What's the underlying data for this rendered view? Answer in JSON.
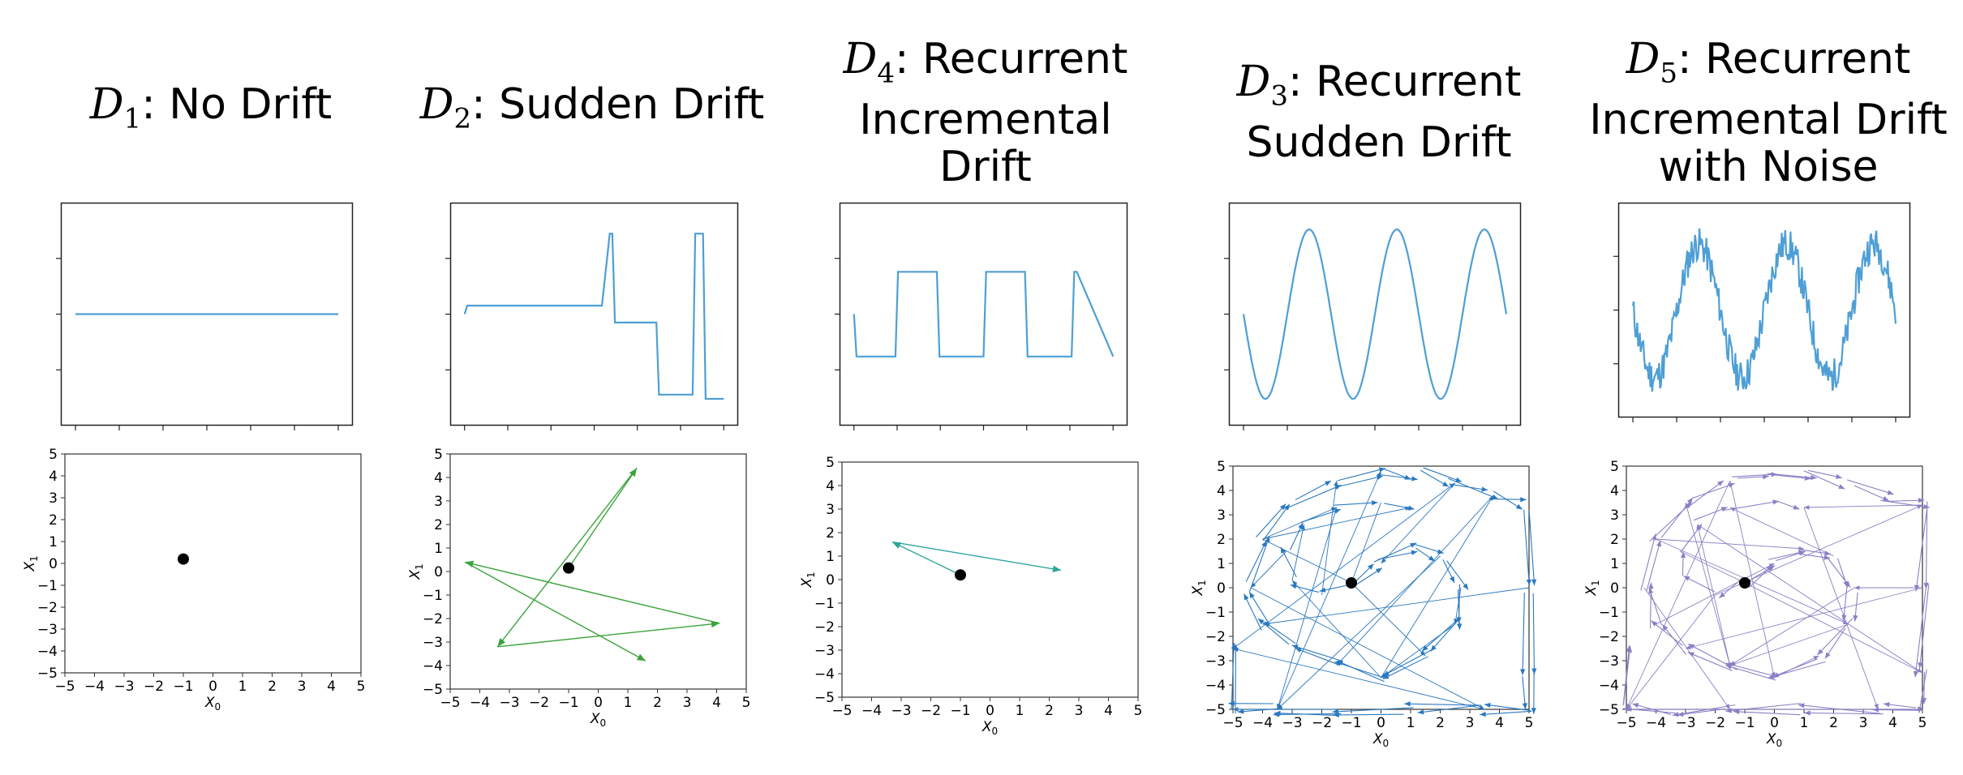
{
  "columns": [
    {
      "sym": "D",
      "sub": "1",
      "title_lines": [
        ": No Drift"
      ]
    },
    {
      "sym": "D",
      "sub": "2",
      "title_lines": [
        ": Sudden Drift"
      ]
    },
    {
      "sym": "D",
      "sub": "4",
      "title_lines": [
        ": Recurrent",
        "Incremental",
        "Drift"
      ]
    },
    {
      "sym": "D",
      "sub": "3",
      "title_lines": [
        ": Recurrent",
        "Sudden Drift"
      ]
    },
    {
      "sym": "D",
      "sub": "5",
      "title_lines": [
        ": Recurrent",
        "Incremental Drift",
        "with Noise"
      ]
    }
  ],
  "chart_data": [
    {
      "type": "line",
      "panel": "D1-series",
      "color": "#4e9fd5",
      "x": [
        0,
        100
      ],
      "y": [
        0,
        0
      ]
    },
    {
      "type": "line",
      "panel": "D2-series",
      "color": "#4e9fd5",
      "x": [
        0,
        1,
        2,
        52,
        53,
        56,
        57,
        58,
        60,
        74,
        75,
        88,
        89,
        92,
        93,
        98,
        99,
        100
      ],
      "y": [
        0.0,
        0.1,
        0.1,
        0.1,
        0.1,
        0.95,
        0.95,
        -0.1,
        -0.1,
        -0.1,
        -0.95,
        -0.95,
        0.95,
        0.95,
        -1.0,
        -1.0,
        -1.0,
        -1.0
      ]
    },
    {
      "type": "line",
      "panel": "D4-series",
      "color": "#4e9fd5",
      "x": [
        0,
        1,
        2,
        16,
        17,
        18,
        32,
        33,
        34,
        50,
        51,
        52,
        66,
        67,
        68,
        84,
        85,
        86,
        100
      ],
      "y": [
        0.0,
        -0.5,
        -0.5,
        -0.5,
        0.5,
        0.5,
        0.5,
        -0.5,
        -0.5,
        -0.5,
        0.5,
        0.5,
        0.5,
        -0.5,
        -0.5,
        -0.5,
        0.5,
        0.5,
        -0.5
      ]
    },
    {
      "type": "line",
      "panel": "D3-series",
      "color": "#4e9fd5",
      "x_range": [
        0,
        100
      ],
      "cycles": 3,
      "amplitude": 1,
      "phase": "starts at 0 going down"
    },
    {
      "type": "line",
      "panel": "D5-series",
      "color": "#4e9fd5",
      "x_range": [
        0,
        100
      ],
      "cycles": 3,
      "amplitude": 1,
      "noise": 0.25,
      "phase": "starts at 0 going down"
    },
    {
      "type": "scatter",
      "panel": "D1-phase",
      "xlabel": "X",
      "xlabel_sub": "0",
      "ylabel": "X",
      "ylabel_sub": "1",
      "xlim": [
        -5,
        5
      ],
      "ylim": [
        -5,
        5
      ],
      "ticks": [
        -5,
        -4,
        -3,
        -2,
        -1,
        0,
        1,
        2,
        3,
        4,
        5
      ],
      "points": [
        [
          -1,
          0.2
        ]
      ],
      "arrows": [],
      "arrow_color": "#3ca33c"
    },
    {
      "type": "scatter",
      "panel": "D2-phase",
      "xlabel": "X",
      "xlabel_sub": "0",
      "ylabel": "X",
      "ylabel_sub": "1",
      "xlim": [
        -5,
        5
      ],
      "ylim": [
        -5,
        5
      ],
      "ticks": [
        -5,
        -4,
        -3,
        -2,
        -1,
        0,
        1,
        2,
        3,
        4,
        5
      ],
      "points": [
        [
          -1,
          0.15
        ]
      ],
      "arrow_color": "#3ca33c",
      "arrows": [
        [
          [
            -1,
            0.15
          ],
          [
            1.3,
            4.4
          ]
        ],
        [
          [
            1.3,
            4.4
          ],
          [
            -3.4,
            -3.2
          ]
        ],
        [
          [
            -3.4,
            -3.2
          ],
          [
            4.1,
            -2.2
          ]
        ],
        [
          [
            4.1,
            -2.2
          ],
          [
            -4.5,
            0.4
          ]
        ],
        [
          [
            -4.5,
            0.4
          ],
          [
            1.6,
            -3.8
          ]
        ]
      ]
    },
    {
      "type": "scatter",
      "panel": "D4-phase",
      "xlabel": "X",
      "xlabel_sub": "0",
      "ylabel": "X",
      "ylabel_sub": "1",
      "xlim": [
        -5,
        5
      ],
      "ylim": [
        -5,
        5
      ],
      "ticks": [
        -5,
        -4,
        -3,
        -2,
        -1,
        0,
        1,
        2,
        3,
        4,
        5
      ],
      "points": [
        [
          -1,
          0.2
        ]
      ],
      "arrow_color": "#2ca79a",
      "arrows": [
        [
          [
            -1,
            0.2
          ],
          [
            -3.3,
            1.6
          ]
        ],
        [
          [
            -3.3,
            1.6
          ],
          [
            2.4,
            0.4
          ]
        ]
      ]
    },
    {
      "type": "scatter",
      "panel": "D3-phase",
      "xlabel": "X",
      "xlabel_sub": "0",
      "ylabel": "X",
      "ylabel_sub": "1",
      "xlim": [
        -5,
        5
      ],
      "ylim": [
        -5,
        5
      ],
      "ticks": [
        -5,
        -4,
        -3,
        -2,
        -1,
        0,
        1,
        2,
        3,
        4,
        5
      ],
      "points": [
        [
          -1,
          0.2
        ]
      ],
      "arrow_color": "#2a78bf",
      "trajectory": "double spiral out to square boundary"
    },
    {
      "type": "scatter",
      "panel": "D5-phase",
      "xlabel": "X",
      "xlabel_sub": "0",
      "ylabel": "X",
      "ylabel_sub": "1",
      "xlim": [
        -5,
        5
      ],
      "ylim": [
        -5,
        5
      ],
      "ticks": [
        -5,
        -4,
        -3,
        -2,
        -1,
        0,
        1,
        2,
        3,
        4,
        5
      ],
      "points": [
        [
          -1,
          0.2
        ]
      ],
      "arrow_color": "#8c7fc6",
      "trajectory": "noisy double spiral with many long jumps"
    }
  ]
}
